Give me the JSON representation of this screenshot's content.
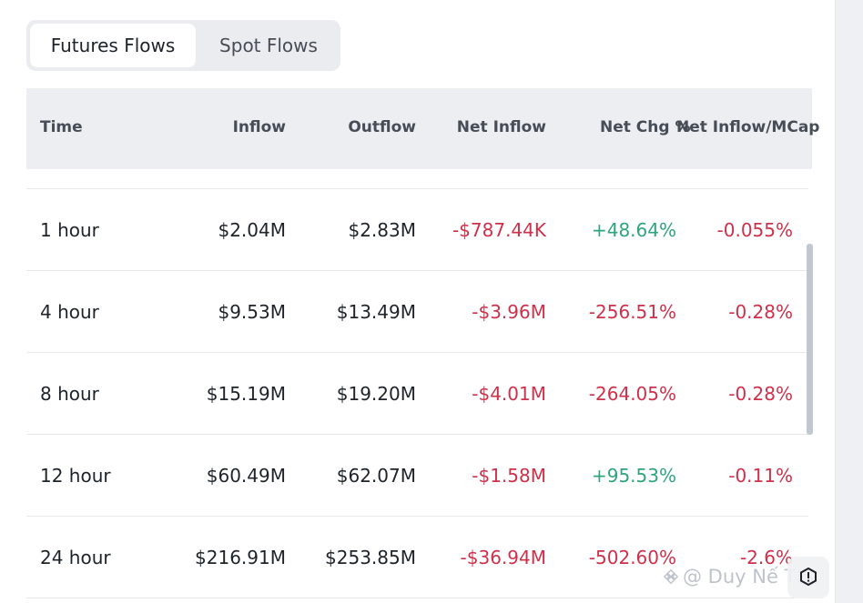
{
  "tabs": [
    {
      "label": "Futures Flows",
      "active": true
    },
    {
      "label": "Spot Flows",
      "active": false
    }
  ],
  "table": {
    "headers": [
      "Time",
      "Inflow",
      "Outflow",
      "Net Inflow",
      "Net Chg %",
      "Net Inflow/MCap"
    ],
    "rows": [
      {
        "time": "1 hour",
        "inflow": "$2.04M",
        "outflow": "$2.83M",
        "net_inflow": "-$787.44K",
        "net_chg": "+48.64%",
        "net_mcap": "-0.055%"
      },
      {
        "time": "4 hour",
        "inflow": "$9.53M",
        "outflow": "$13.49M",
        "net_inflow": "-$3.96M",
        "net_chg": "-256.51%",
        "net_mcap": "-0.28%"
      },
      {
        "time": "8 hour",
        "inflow": "$15.19M",
        "outflow": "$19.20M",
        "net_inflow": "-$4.01M",
        "net_chg": "-264.05%",
        "net_mcap": "-0.28%"
      },
      {
        "time": "12 hour",
        "inflow": "$60.49M",
        "outflow": "$62.07M",
        "net_inflow": "-$1.58M",
        "net_chg": "+95.53%",
        "net_mcap": "-0.11%"
      },
      {
        "time": "24 hour",
        "inflow": "$216.91M",
        "outflow": "$253.85M",
        "net_inflow": "-$36.94M",
        "net_chg": "-502.60%",
        "net_mcap": "-2.6%"
      }
    ]
  },
  "watermark": {
    "text": "@ Duy Nế TIS"
  },
  "colors": {
    "positive": "#2ea57b",
    "negative": "#cf304a",
    "header_bg": "#eceef1",
    "tab_bg": "#eaecef"
  },
  "icons": {
    "watermark_logo": "binance-logo-icon",
    "fab": "feedback-icon"
  }
}
